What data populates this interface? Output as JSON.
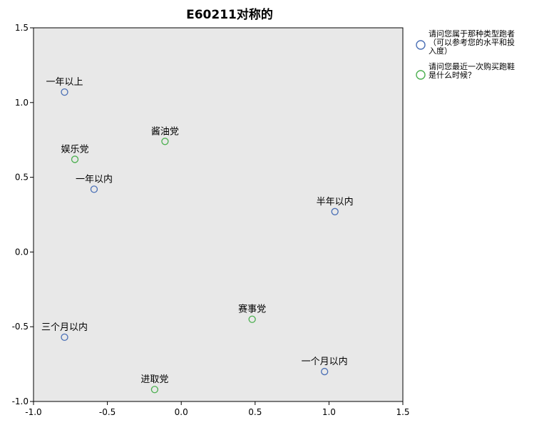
{
  "chart_data": {
    "type": "scatter",
    "title": "E60211对称的",
    "xlabel": "",
    "ylabel": "",
    "xlim": [
      -1.0,
      1.5
    ],
    "ylim": [
      -1.0,
      1.5
    ],
    "x_ticks": [
      "-1.0",
      "-0.5",
      "0.0",
      "0.5",
      "1.0",
      "1.5"
    ],
    "y_ticks": [
      "1.5",
      "1.0",
      "0.5",
      "0.0",
      "-0.5",
      "-1.0"
    ],
    "x_tick_values": [
      -1.0,
      -0.5,
      0.0,
      0.5,
      1.0,
      1.5
    ],
    "y_tick_values": [
      1.5,
      1.0,
      0.5,
      0.0,
      -0.5,
      -1.0
    ],
    "plot_background": "#e8e8e8",
    "legend_position": "right",
    "series": [
      {
        "name": "请问您属于那种类型跑者（可以参考您的水平和投入度）",
        "legend_lines": [
          "请问您属于那种类型跑者",
          "（可以参考您的水平和投",
          "入度）"
        ],
        "color": "#4a6fb5",
        "points": [
          {
            "label": "一年以上",
            "x": -0.79,
            "y": 1.07
          },
          {
            "label": "一年以内",
            "x": -0.59,
            "y": 0.42
          },
          {
            "label": "半年以内",
            "x": 1.04,
            "y": 0.27
          },
          {
            "label": "三个月以内",
            "x": -0.79,
            "y": -0.57
          },
          {
            "label": "一个月以内",
            "x": 0.97,
            "y": -0.8
          }
        ]
      },
      {
        "name": "请问您最近一次购买跑鞋是什么时候？",
        "legend_lines": [
          "请问您最近一次购买跑鞋",
          "是什么时候？"
        ],
        "color": "#4caf50",
        "points": [
          {
            "label": "酱油党",
            "x": -0.11,
            "y": 0.74
          },
          {
            "label": "娱乐党",
            "x": -0.72,
            "y": 0.62
          },
          {
            "label": "赛事党",
            "x": 0.48,
            "y": -0.45
          },
          {
            "label": "进取党",
            "x": -0.18,
            "y": -0.92
          }
        ]
      }
    ]
  }
}
